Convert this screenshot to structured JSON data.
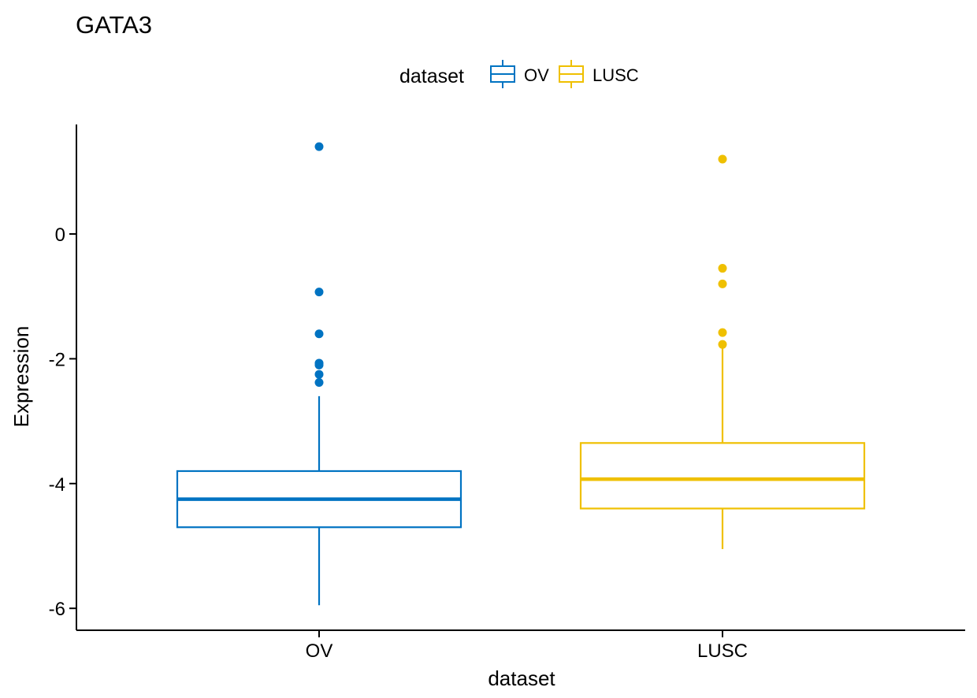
{
  "chart_data": {
    "type": "box",
    "title": "GATA3",
    "xlabel": "dataset",
    "ylabel": "Expression",
    "categories": [
      "OV",
      "LUSC"
    ],
    "ylim": [
      -6.3,
      1.75
    ],
    "yticks": [
      0,
      -2,
      -4,
      -6
    ],
    "ytick_labels": [
      "0",
      "-2",
      "-4",
      "-6"
    ],
    "legend": {
      "title": "dataset",
      "position": "top",
      "entries": [
        "OV",
        "LUSC"
      ]
    },
    "grid": false,
    "series": [
      {
        "category": "OV",
        "color": "#0073C2",
        "min": -5.95,
        "q1": -4.7,
        "median": -4.25,
        "q3": -3.8,
        "max": -2.6,
        "outliers": [
          1.4,
          -0.93,
          -1.6,
          -2.07,
          -2.1,
          -2.25,
          -2.38
        ]
      },
      {
        "category": "LUSC",
        "color": "#EFC000",
        "min": -5.05,
        "q1": -4.4,
        "median": -3.93,
        "q3": -3.35,
        "max": -1.8,
        "outliers": [
          1.2,
          -0.55,
          -0.8,
          -1.58,
          -1.77
        ]
      }
    ]
  }
}
